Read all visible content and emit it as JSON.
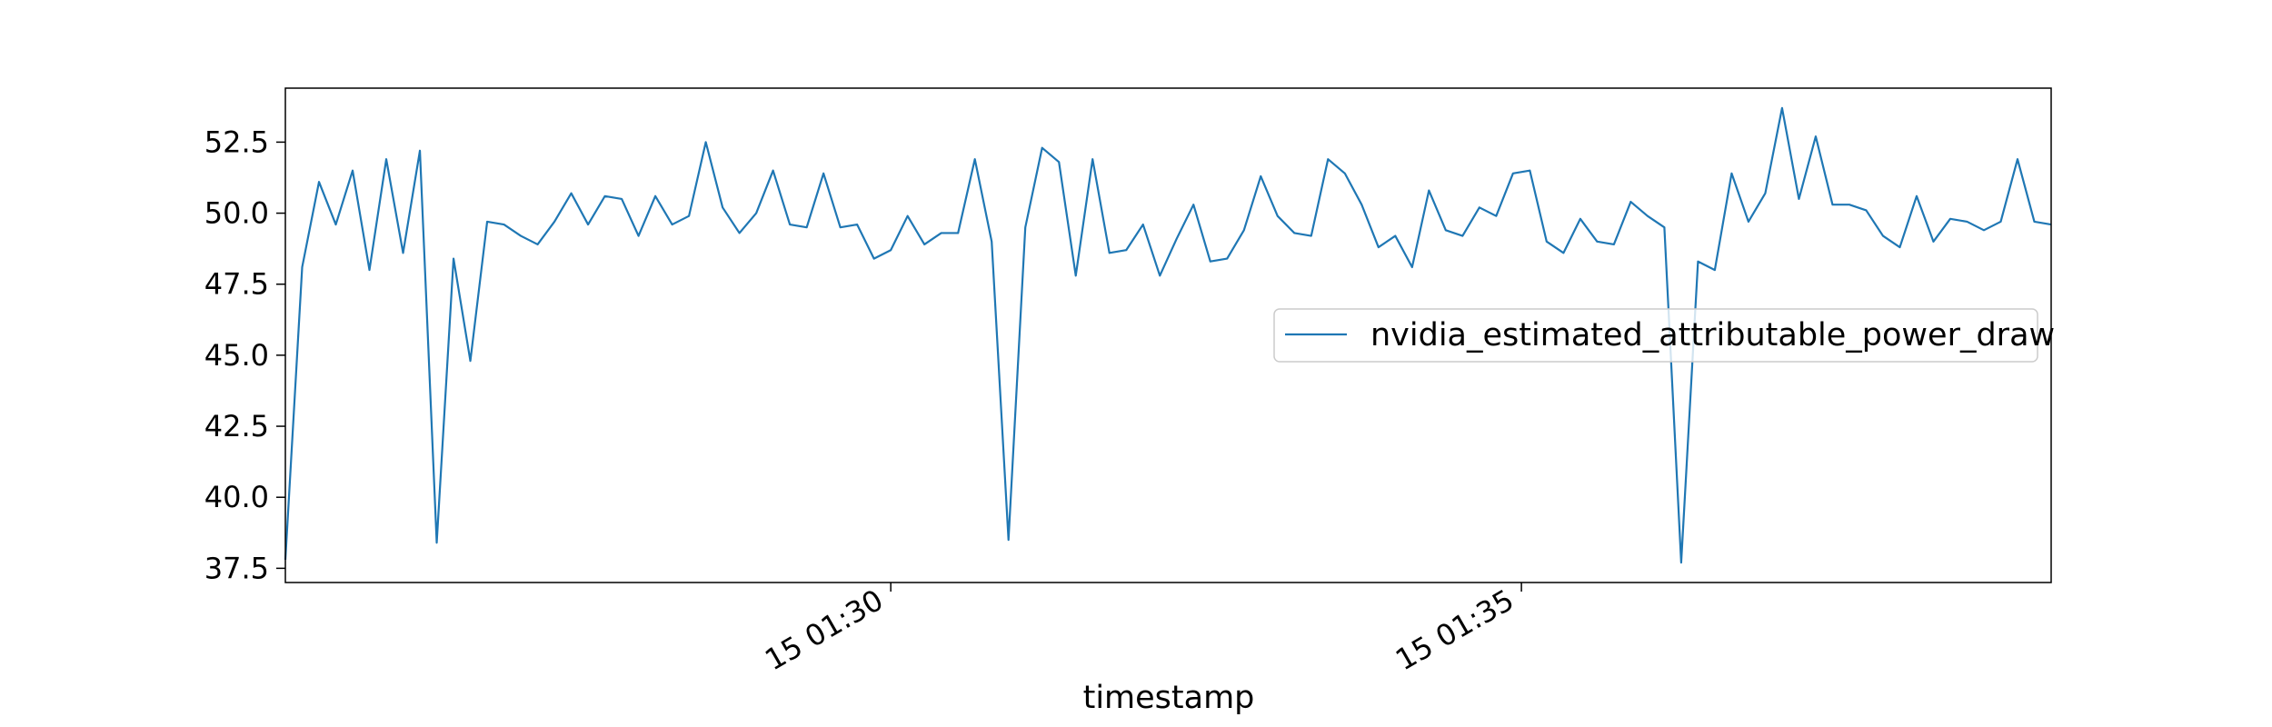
{
  "chart_data": {
    "type": "line",
    "title": "",
    "xlabel": "timestamp",
    "ylabel": "",
    "ylim": [
      37.0,
      54.4
    ],
    "grid": false,
    "legend_position": "center-right",
    "y_ticks": [
      "37.5",
      "40.0",
      "42.5",
      "45.0",
      "47.5",
      "50.0",
      "52.5"
    ],
    "x_ticks": [
      {
        "label": "15 01:30",
        "index": 36
      },
      {
        "label": "15 01:35",
        "index": 73.5
      }
    ],
    "series": [
      {
        "name": "nvidia_estimated_attributable_power_draw",
        "color": "#1f77b4",
        "values": [
          37.8,
          48.1,
          51.1,
          49.6,
          51.5,
          48.0,
          51.9,
          48.6,
          52.2,
          38.4,
          48.4,
          44.8,
          49.7,
          49.6,
          49.2,
          48.9,
          49.7,
          50.7,
          49.6,
          50.6,
          50.5,
          49.2,
          50.6,
          49.6,
          49.9,
          52.5,
          50.2,
          49.3,
          50.0,
          51.5,
          49.6,
          49.5,
          51.4,
          49.5,
          49.6,
          48.4,
          48.7,
          49.9,
          48.9,
          49.3,
          49.3,
          51.9,
          49.0,
          38.5,
          49.5,
          52.3,
          51.8,
          47.8,
          51.9,
          48.6,
          48.7,
          49.6,
          47.8,
          49.1,
          50.3,
          48.3,
          48.4,
          49.4,
          51.3,
          49.9,
          49.3,
          49.2,
          51.9,
          51.4,
          50.3,
          48.8,
          49.2,
          48.1,
          50.8,
          49.4,
          49.2,
          50.2,
          49.9,
          51.4,
          51.5,
          49.0,
          48.6,
          49.8,
          49.0,
          48.9,
          50.4,
          49.9,
          49.5,
          37.7,
          48.3,
          48.0,
          51.4,
          49.7,
          50.7,
          53.7,
          50.5,
          52.7,
          50.3,
          50.3,
          50.1,
          49.2,
          48.8,
          50.6,
          49.0,
          49.8,
          49.7,
          49.4,
          49.7,
          51.9,
          49.7,
          49.6
        ]
      }
    ]
  }
}
